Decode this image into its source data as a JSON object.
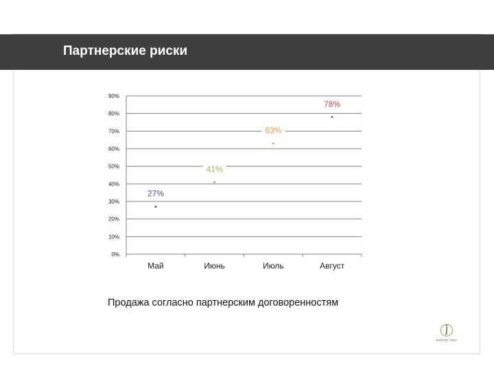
{
  "header": {
    "title": "Партнерские риски"
  },
  "caption": "Продажа согласно партнерским договоренностям",
  "logo": {
    "text": "MONTE GIES"
  },
  "colors": {
    "header_bg": "#3f3f3f",
    "grid": "#7f7f7f"
  },
  "chart_data": {
    "type": "scatter",
    "categories": [
      "Май",
      "Июнь",
      "Июль",
      "Август"
    ],
    "series": [
      {
        "values": [
          27,
          41,
          63,
          78
        ]
      }
    ],
    "point_labels": [
      "27%",
      "41%",
      "63%",
      "78%"
    ],
    "point_colors": [
      "#5f4b8b",
      "#9bbb59",
      "#f79646",
      "#c0504d"
    ],
    "y_ticks": [
      "0%",
      "10%",
      "20%",
      "30%",
      "40%",
      "50%",
      "60%",
      "70%",
      "80%",
      "90%"
    ],
    "ylim": [
      0,
      90
    ],
    "grid": true,
    "title": "",
    "xlabel": "",
    "ylabel": ""
  }
}
